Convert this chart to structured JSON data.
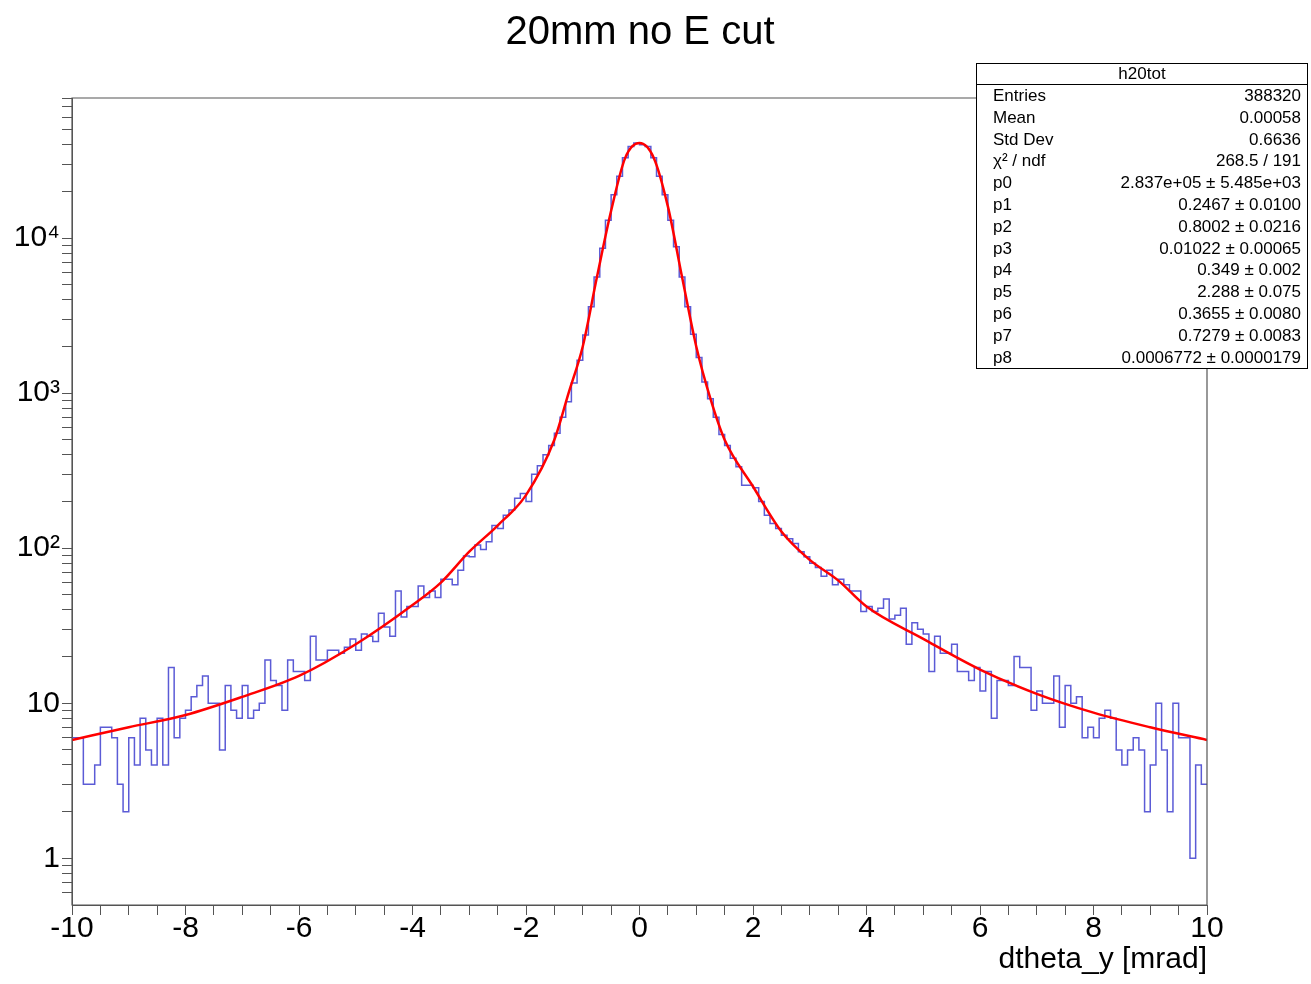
{
  "chart_data": {
    "type": "histogram",
    "title": "20mm no E cut",
    "xlabel": "dtheta_y [mrad]",
    "bins": [
      -10,
      -9.9,
      -9.8,
      -9.7,
      -9.6,
      -9.5,
      -9.4,
      -9.3,
      -9.2,
      -9.1,
      -9,
      -8.9,
      -8.8,
      -8.7,
      -8.6,
      -8.5,
      -8.4,
      -8.3,
      -8.2,
      -8.1,
      -8,
      -7.9,
      -7.8,
      -7.7,
      -7.6,
      -7.5,
      -7.4,
      -7.3,
      -7.2,
      -7.1,
      -7,
      -6.9,
      -6.8,
      -6.7,
      -6.6,
      -6.5,
      -6.4,
      -6.3,
      -6.2,
      -6.1,
      -6,
      -5.9,
      -5.8,
      -5.7,
      -5.6,
      -5.5,
      -5.4,
      -5.3,
      -5.2,
      -5.1,
      -5,
      -4.9,
      -4.8,
      -4.7,
      -4.6,
      -4.5,
      -4.4,
      -4.3,
      -4.2,
      -4.1,
      -4,
      -3.9,
      -3.8,
      -3.7,
      -3.6,
      -3.5,
      -3.4,
      -3.3,
      -3.2,
      -3.1,
      -3,
      -2.9,
      -2.8,
      -2.7,
      -2.6,
      -2.5,
      -2.4,
      -2.3,
      -2.2,
      -2.1,
      -2,
      -1.9,
      -1.8,
      -1.7,
      -1.6,
      -1.5,
      -1.4,
      -1.3,
      -1.2,
      -1.1,
      -1,
      -0.9,
      -0.8,
      -0.7,
      -0.6,
      -0.5,
      -0.4,
      -0.3,
      -0.2,
      -0.1,
      0,
      0.1,
      0.2,
      0.3,
      0.4,
      0.5,
      0.6,
      0.7,
      0.8,
      0.9,
      1,
      1.1,
      1.2,
      1.3,
      1.4,
      1.5,
      1.6,
      1.7,
      1.8,
      1.9,
      2,
      2.1,
      2.2,
      2.3,
      2.4,
      2.5,
      2.6,
      2.7,
      2.8,
      2.9,
      3,
      3.1,
      3.2,
      3.3,
      3.4,
      3.5,
      3.6,
      3.7,
      3.8,
      3.9,
      4,
      4.1,
      4.2,
      4.3,
      4.4,
      4.5,
      4.6,
      4.7,
      4.8,
      4.9,
      5,
      5.1,
      5.2,
      5.3,
      5.4,
      5.5,
      5.6,
      5.7,
      5.8,
      5.9,
      6,
      6.1,
      6.2,
      6.3,
      6.4,
      6.5,
      6.6,
      6.7,
      6.8,
      6.9,
      7,
      7.1,
      7.2,
      7.3,
      7.4,
      7.5,
      7.6,
      7.7,
      7.8,
      7.9,
      8,
      8.1,
      8.2,
      8.3,
      8.4,
      8.5,
      8.6,
      8.7,
      8.8,
      8.9,
      9,
      9.1,
      9.2,
      9.3,
      9.4,
      9.5,
      9.6,
      9.7,
      9.8,
      9.9,
      10
    ],
    "values": [
      6,
      6,
      3,
      3,
      4,
      7,
      7,
      6,
      3,
      2,
      6,
      4,
      8,
      5,
      4,
      8,
      4,
      17,
      6,
      8,
      9,
      11,
      13,
      15,
      10,
      10,
      5,
      13,
      9,
      8,
      13,
      8,
      9,
      10,
      19,
      14,
      13,
      9,
      19,
      16,
      16,
      14,
      27,
      19,
      19,
      22,
      22,
      21,
      23,
      26,
      22,
      28,
      27,
      25,
      38,
      31,
      27,
      53,
      36,
      42,
      42,
      57,
      48,
      53,
      48,
      63,
      63,
      58,
      72,
      89,
      88,
      105,
      98,
      110,
      140,
      134,
      163,
      176,
      210,
      225,
      200,
      300,
      340,
      400,
      460,
      550,
      700,
      880,
      1160,
      1630,
      2370,
      3600,
      5600,
      8600,
      13000,
      19000,
      25000,
      33000,
      39000,
      41000,
      40000,
      39000,
      33000,
      25000,
      19000,
      13000,
      8800,
      5600,
      3600,
      2400,
      1700,
      1180,
      920,
      700,
      540,
      460,
      380,
      335,
      255,
      255,
      245,
      200,
      163,
      144,
      134,
      121,
      115,
      107,
      95,
      88,
      80,
      75,
      66,
      72,
      58,
      63,
      58,
      53,
      53,
      39,
      42,
      39,
      41,
      47,
      35,
      37,
      41,
      24,
      33,
      30,
      28,
      16,
      27,
      21,
      21,
      24,
      16,
      16,
      14,
      17,
      12,
      16,
      8,
      14,
      14,
      13,
      20,
      17,
      17,
      9,
      12,
      10,
      10,
      15,
      7,
      13,
      10,
      11,
      6,
      7,
      6,
      8,
      9,
      8,
      5,
      4,
      5,
      6,
      5,
      2,
      4,
      10,
      5,
      2,
      10,
      6,
      6,
      1,
      4,
      3
    ],
    "color": "#5b5bd6",
    "series": [
      {
        "type": "line",
        "color": "#ff0000",
        "x": [
          -10,
          -9,
          -8,
          -7,
          -6,
          -5,
          -4,
          -3.5,
          -3,
          -2.5,
          -2,
          -1.5,
          -1.25,
          -1,
          -0.75,
          -0.5,
          -0.25,
          0,
          0.25,
          0.5,
          0.75,
          1,
          1.25,
          1.5,
          2,
          2.5,
          3,
          3.5,
          4,
          5,
          6,
          7,
          8,
          9,
          10
        ],
        "values": [
          5.8,
          7,
          8.4,
          11,
          15,
          24,
          43,
          60,
          95,
          140,
          220,
          500,
          1000,
          2000,
          5600,
          15000,
          33000,
          41000,
          33000,
          16000,
          5600,
          2000,
          920,
          500,
          250,
          128,
          84,
          62,
          42,
          26,
          16.5,
          11.5,
          8.7,
          7,
          5.8
        ]
      }
    ],
    "log": true,
    "xlim": [
      -10,
      10
    ],
    "ylim": [
      0.5,
      80000
    ],
    "xticks": [
      {
        "value": -10,
        "label": "-10"
      },
      {
        "value": -9.5,
        "label": null
      },
      {
        "value": -9,
        "label": null
      },
      {
        "value": -8.5,
        "label": null
      },
      {
        "value": -8,
        "label": "-8"
      },
      {
        "value": -7.5,
        "label": null
      },
      {
        "value": -7,
        "label": null
      },
      {
        "value": -6.5,
        "label": null
      },
      {
        "value": -6,
        "label": "-6"
      },
      {
        "value": -5.5,
        "label": null
      },
      {
        "value": -5,
        "label": null
      },
      {
        "value": -4.5,
        "label": null
      },
      {
        "value": -4,
        "label": "-4"
      },
      {
        "value": -3.5,
        "label": null
      },
      {
        "value": -3,
        "label": null
      },
      {
        "value": -2.5,
        "label": null
      },
      {
        "value": -2,
        "label": "-2"
      },
      {
        "value": -1.5,
        "label": null
      },
      {
        "value": -1,
        "label": null
      },
      {
        "value": -0.5,
        "label": null
      },
      {
        "value": 0,
        "label": "0"
      },
      {
        "value": 0.5,
        "label": null
      },
      {
        "value": 1,
        "label": null
      },
      {
        "value": 1.5,
        "label": null
      },
      {
        "value": 2,
        "label": "2"
      },
      {
        "value": 2.5,
        "label": null
      },
      {
        "value": 3,
        "label": null
      },
      {
        "value": 3.5,
        "label": null
      },
      {
        "value": 4,
        "label": "4"
      },
      {
        "value": 4.5,
        "label": null
      },
      {
        "value": 5,
        "label": null
      },
      {
        "value": 5.5,
        "label": null
      },
      {
        "value": 6,
        "label": "6"
      },
      {
        "value": 6.5,
        "label": null
      },
      {
        "value": 7,
        "label": null
      },
      {
        "value": 7.5,
        "label": null
      },
      {
        "value": 8,
        "label": "8"
      },
      {
        "value": 8.5,
        "label": null
      },
      {
        "value": 9,
        "label": null
      },
      {
        "value": 9.5,
        "label": null
      },
      {
        "value": 10,
        "label": "10"
      }
    ],
    "yticks": [
      {
        "value": 0.6,
        "label": null
      },
      {
        "value": 0.7,
        "label": null
      },
      {
        "value": 0.8,
        "label": null
      },
      {
        "value": 0.9,
        "label": null
      },
      {
        "value": 1,
        "label": "1"
      },
      {
        "value": 2,
        "label": null
      },
      {
        "value": 3,
        "label": null
      },
      {
        "value": 4,
        "label": null
      },
      {
        "value": 5,
        "label": null
      },
      {
        "value": 6,
        "label": null
      },
      {
        "value": 7,
        "label": null
      },
      {
        "value": 8,
        "label": null
      },
      {
        "value": 9,
        "label": null
      },
      {
        "value": 10,
        "label": "10"
      },
      {
        "value": 20,
        "label": null
      },
      {
        "value": 30,
        "label": null
      },
      {
        "value": 40,
        "label": null
      },
      {
        "value": 50,
        "label": null
      },
      {
        "value": 60,
        "label": null
      },
      {
        "value": 70,
        "label": null
      },
      {
        "value": 80,
        "label": null
      },
      {
        "value": 90,
        "label": null
      },
      {
        "value": 100,
        "label": "10²"
      },
      {
        "value": 200,
        "label": null
      },
      {
        "value": 300,
        "label": null
      },
      {
        "value": 400,
        "label": null
      },
      {
        "value": 500,
        "label": null
      },
      {
        "value": 600,
        "label": null
      },
      {
        "value": 700,
        "label": null
      },
      {
        "value": 800,
        "label": null
      },
      {
        "value": 900,
        "label": null
      },
      {
        "value": 1000,
        "label": "10³"
      },
      {
        "value": 2000,
        "label": null
      },
      {
        "value": 3000,
        "label": null
      },
      {
        "value": 4000,
        "label": null
      },
      {
        "value": 5000,
        "label": null
      },
      {
        "value": 6000,
        "label": null
      },
      {
        "value": 7000,
        "label": null
      },
      {
        "value": 8000,
        "label": null
      },
      {
        "value": 9000,
        "label": null
      },
      {
        "value": 10000,
        "label": "10⁴"
      },
      {
        "value": 20000,
        "label": null
      },
      {
        "value": 30000,
        "label": null
      },
      {
        "value": 40000,
        "label": null
      },
      {
        "value": 50000,
        "label": null
      },
      {
        "value": 60000,
        "label": null
      },
      {
        "value": 70000,
        "label": null
      },
      {
        "value": 80000,
        "label": null
      }
    ],
    "annotations": [
      "h20tot",
      "Entries\t388320",
      "Mean\t0.00058",
      "Std Dev\t0.6636",
      "χ² / ndf\t268.5 / 191",
      "p0\t2.837e+05 ± 5.485e+03",
      "p1\t0.2467 ± 0.0100",
      "p2\t0.8002 ± 0.0216",
      "p3\t0.01022 ± 0.00065",
      "p4\t0.349 ± 0.002",
      "p5\t2.288 ± 0.075",
      "p6\t0.3655 ± 0.0080",
      "p7\t0.7279 ± 0.0083",
      "p8\t0.0006772 ± 0.0000179"
    ]
  }
}
